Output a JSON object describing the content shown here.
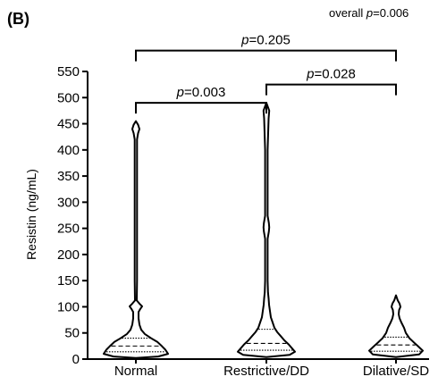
{
  "panel_label": "(B)",
  "chart_data": {
    "type": "violin",
    "title": "",
    "xlabel": "",
    "ylabel": "Resistin (ng/mL)",
    "ylim": [
      0,
      550
    ],
    "yticks": [
      0,
      50,
      100,
      150,
      200,
      250,
      300,
      350,
      400,
      450,
      500,
      550
    ],
    "categories": [
      "Normal",
      "Restrictive/DD",
      "Dilative/SD"
    ],
    "series": [
      {
        "category": "Normal",
        "median": 25,
        "q1": 14,
        "q3": 40,
        "profile": [
          [
            2,
            0
          ],
          [
            5,
            25
          ],
          [
            10,
            36
          ],
          [
            18,
            33
          ],
          [
            25,
            29
          ],
          [
            33,
            24
          ],
          [
            40,
            17
          ],
          [
            48,
            10
          ],
          [
            56,
            6
          ],
          [
            66,
            4
          ],
          [
            78,
            3
          ],
          [
            90,
            3
          ],
          [
            96,
            5
          ],
          [
            101,
            7
          ],
          [
            106,
            4
          ],
          [
            112,
            1
          ],
          [
            150,
            1.3
          ],
          [
            250,
            1.3
          ],
          [
            350,
            1.3
          ],
          [
            420,
            1.3
          ],
          [
            432,
            2.5
          ],
          [
            440,
            4
          ],
          [
            448,
            2.5
          ],
          [
            455,
            0
          ]
        ]
      },
      {
        "category": "Restrictive/DD",
        "median": 30,
        "q1": 17,
        "q3": 57,
        "profile": [
          [
            4,
            0
          ],
          [
            8,
            26
          ],
          [
            14,
            32
          ],
          [
            20,
            29
          ],
          [
            28,
            25
          ],
          [
            36,
            20
          ],
          [
            44,
            16
          ],
          [
            52,
            12
          ],
          [
            60,
            9
          ],
          [
            70,
            7
          ],
          [
            80,
            5
          ],
          [
            92,
            4
          ],
          [
            104,
            3
          ],
          [
            116,
            2.5
          ],
          [
            128,
            1.8
          ],
          [
            150,
            1.4
          ],
          [
            230,
            1.4
          ],
          [
            244,
            2.8
          ],
          [
            252,
            3.2
          ],
          [
            260,
            2.8
          ],
          [
            274,
            1.4
          ],
          [
            400,
            1.4
          ],
          [
            460,
            2.5
          ],
          [
            475,
            3.2
          ],
          [
            490,
            0
          ]
        ]
      },
      {
        "category": "Dilative/SD",
        "median": 27,
        "q1": 15,
        "q3": 42,
        "profile": [
          [
            4,
            0
          ],
          [
            9,
            26
          ],
          [
            16,
            30
          ],
          [
            24,
            25
          ],
          [
            32,
            20
          ],
          [
            40,
            15
          ],
          [
            50,
            11
          ],
          [
            60,
            9
          ],
          [
            70,
            6
          ],
          [
            78,
            4
          ],
          [
            86,
            3
          ],
          [
            94,
            3.5
          ],
          [
            100,
            5
          ],
          [
            106,
            4
          ],
          [
            112,
            2
          ],
          [
            122,
            0
          ]
        ]
      }
    ],
    "comparisons": [
      {
        "label_prefix": "p",
        "label_value": "=0.003",
        "from": "Normal",
        "to": "Restrictive/DD",
        "level": 490
      },
      {
        "label_prefix": "p",
        "label_value": "=0.028",
        "from": "Restrictive/DD",
        "to": "Dilative/SD",
        "level": 525
      },
      {
        "label_prefix": "p",
        "label_value": "=0.205",
        "from": "Normal",
        "to": "Dilative/SD",
        "level": 590
      }
    ],
    "overall": {
      "prefix": "overall ",
      "p": "p",
      "value": "=0.006"
    },
    "grid": false,
    "legend": "none"
  }
}
